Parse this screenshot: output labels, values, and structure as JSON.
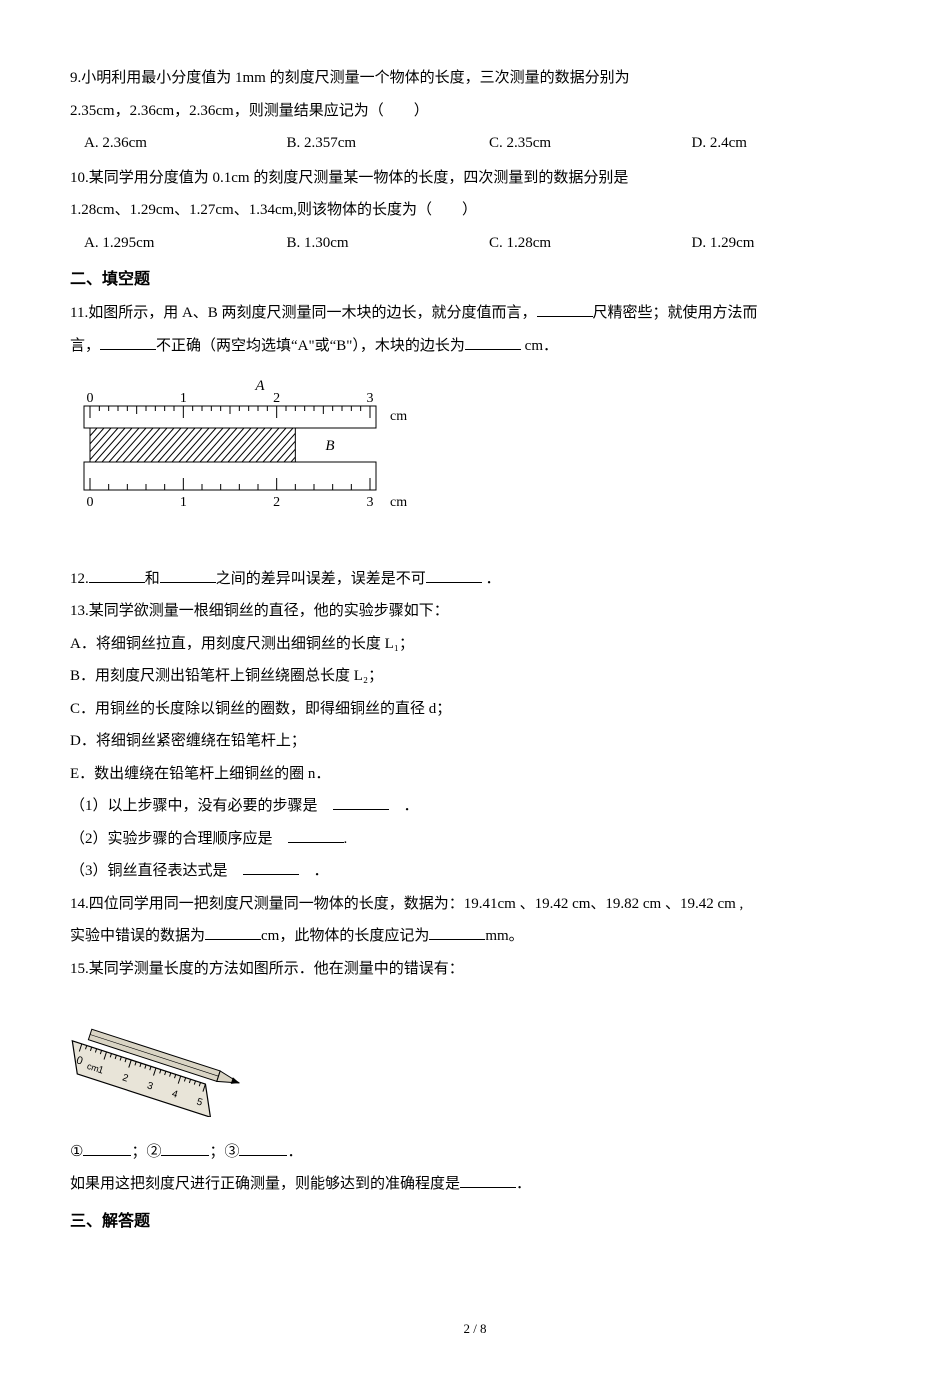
{
  "q9": {
    "text": "9.小明利用最小分度值为 1mm 的刻度尺测量一个物体的长度，三次测量的数据分别为",
    "line2": "2.35cm，2.36cm，2.36cm，则测量结果应记为（　　）",
    "opts": {
      "a": "A. 2.36cm",
      "b": "B. 2.357cm",
      "c": "C. 2.35cm",
      "d": "D. 2.4cm"
    }
  },
  "q10": {
    "text": "10.某同学用分度值为 0.1cm 的刻度尺测量某一物体的长度，四次测量到的数据分别是",
    "line2": "1.28cm、1.29cm、1.27cm、1.34cm,则该物体的长度为（　　）",
    "opts": {
      "a": "A. 1.295cm",
      "b": "B. 1.30cm",
      "c": "C. 1.28cm",
      "d": "D. 1.29cm"
    }
  },
  "sec2": "二、填空题",
  "q11": {
    "p1a": "11.如图所示，用 A、B 两刻度尺测量同一木块的边长，就分度值而言，",
    "p1b": "尺精密些；就使用方法而",
    "p2a": "言，",
    "p2b": "不正确（两空均选填“A\"或“B\"），木块的边长为",
    "p2c": " cm．",
    "fig": {
      "labelA": "A",
      "labelB": "B",
      "unit": "cm",
      "ticks": [
        "0",
        "1",
        "2",
        "3"
      ],
      "ruler_bg": "#ffffff",
      "hatch_bg": "#ffffff",
      "line_color": "#000000",
      "italic_font": "italic 15px 'Times New Roman', serif",
      "num_font": "14px 'Times New Roman', serif"
    }
  },
  "q12": {
    "a": "12.",
    "b": "和",
    "c": "之间的差异叫误差，误差是不可",
    "d": " ．"
  },
  "q13": {
    "head": "13.某同学欲测量一根细铜丝的直径，他的实验步骤如下：",
    "A": "A．将细铜丝拉直，用刻度尺测出细铜丝的长度 L₁；",
    "B": "B．用刻度尺测出铅笔杆上铜丝绕圈总长度 L₂；",
    "C": "C．用铜丝的长度除以铜丝的圈数，即得细铜丝的直径 d；",
    "D": "D．将细铜丝紧密缠绕在铅笔杆上；",
    "E": "E．数出缠绕在铅笔杆上细铜丝的圈 n．",
    "s1a": "（1）以上步骤中，没有必要的步骤是　",
    "s1b": "　．",
    "s2a": "（2）实验步骤的合理顺序应是　",
    "s2b": ".",
    "s3a": "（3）铜丝直径表达式是　",
    "s3b": "　．"
  },
  "q14": {
    "p1": "14.四位同学用同一把刻度尺测量同一物体的长度，数据为：19.41cm 、19.42 cm、19.82 cm 、19.42 cm ,",
    "p2a": "实验中错误的数据为",
    "p2b": "cm，此物体的长度应记为",
    "p2c": "mm。"
  },
  "q15": {
    "head": "15.某同学测量长度的方法如图所示．他在测量中的错误有：",
    "fig": {
      "ruler_color": "#e8e4d8",
      "line_color": "#000000",
      "scale_label": "0 cm",
      "ticks": [
        "1",
        "2",
        "3",
        "4",
        "5"
      ],
      "pencil_body": "#d9d4c4",
      "pencil_tip": "#000000"
    },
    "line_a": "①",
    "line_b": "；②",
    "line_c": "；③",
    "line_d": "．",
    "p3a": "如果用这把刻度尺进行正确测量，则能够达到的准确程度是",
    "p3b": "．"
  },
  "sec3": "三、解答题",
  "pagenum": "2 / 8"
}
